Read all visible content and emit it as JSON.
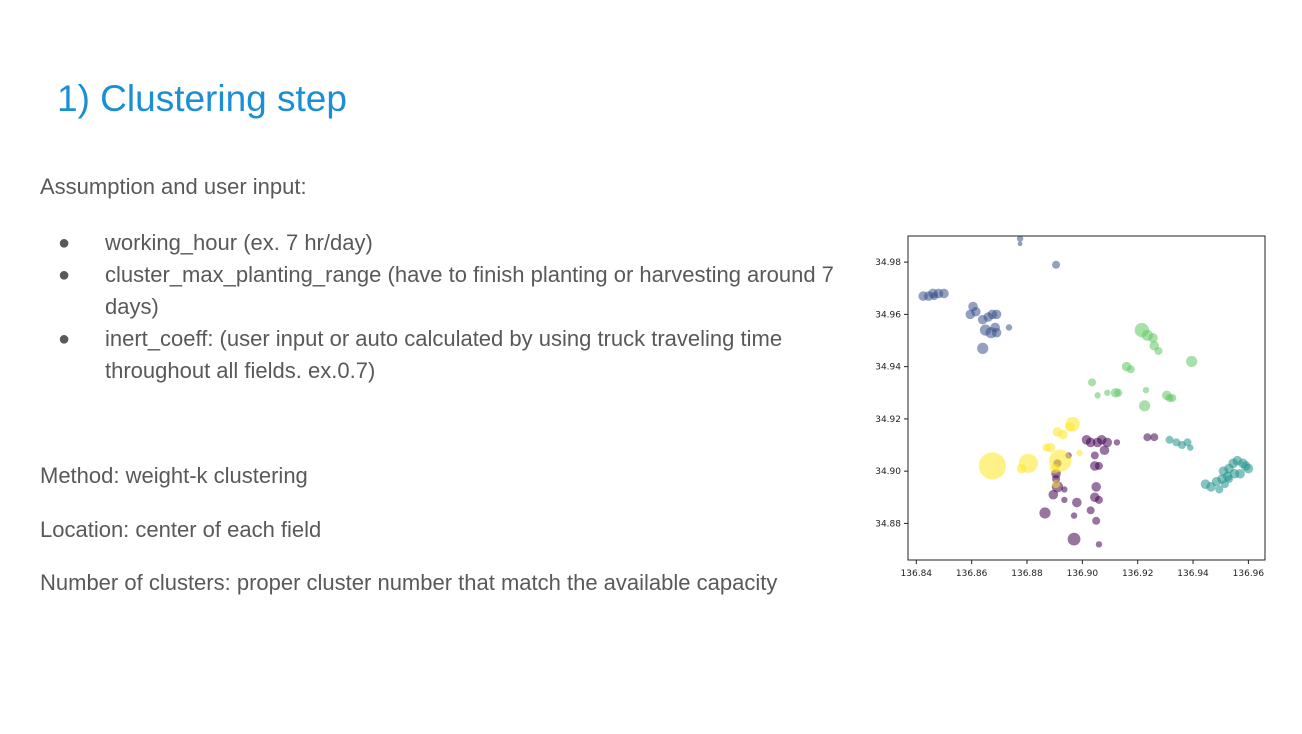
{
  "slide": {
    "title": "1) Clustering step",
    "assumption_heading": "Assumption and user input:",
    "bullets": [
      "working_hour (ex. 7 hr/day)",
      "cluster_max_planting_range (have to finish planting or harvesting around 7 days)",
      "inert_coeff:  (user input or auto calculated by using truck traveling time throughout all fields. ex.0.7)"
    ],
    "bullet_glyph": "●",
    "method": "Method: weight-k clustering",
    "location": "Location: center of each field",
    "num_clusters": "Number of clusters: proper cluster number that match the available capacity"
  },
  "chart_data": {
    "type": "scatter",
    "title": "",
    "xlabel": "",
    "ylabel": "",
    "xlim": [
      136.837,
      136.966
    ],
    "ylim": [
      34.866,
      34.99
    ],
    "xticks": [
      136.84,
      136.86,
      136.88,
      136.9,
      136.92,
      136.94,
      136.96
    ],
    "yticks": [
      34.88,
      34.9,
      34.92,
      34.94,
      34.96,
      34.98
    ],
    "xtick_labels": [
      "136.84",
      "136.86",
      "136.88",
      "136.90",
      "136.92",
      "136.94",
      "136.96"
    ],
    "ytick_labels": [
      "34.88",
      "34.90",
      "34.92",
      "34.94",
      "34.96",
      "34.98"
    ],
    "grid": false,
    "colors": [
      "#3b528b",
      "#440154",
      "#21918c",
      "#5ec962",
      "#fde725"
    ],
    "clusters": [
      {
        "color": "#3b528b",
        "points": [
          [
            136.8425,
            34.967,
            3
          ],
          [
            136.8445,
            34.967,
            3
          ],
          [
            136.846,
            34.968,
            3
          ],
          [
            136.848,
            34.968,
            3
          ],
          [
            136.85,
            34.968,
            3
          ],
          [
            136.8465,
            34.967,
            2.5
          ],
          [
            136.8605,
            34.963,
            3
          ],
          [
            136.8615,
            34.961,
            3
          ],
          [
            136.8595,
            34.96,
            3
          ],
          [
            136.864,
            34.958,
            3
          ],
          [
            136.866,
            34.959,
            3
          ],
          [
            136.8675,
            34.96,
            3
          ],
          [
            136.869,
            34.96,
            3
          ],
          [
            136.865,
            34.954,
            3.5
          ],
          [
            136.867,
            34.953,
            3.5
          ],
          [
            136.8685,
            34.955,
            3
          ],
          [
            136.869,
            34.953,
            3
          ],
          [
            136.8735,
            34.955,
            2
          ],
          [
            136.864,
            34.947,
            3.5
          ],
          [
            136.8775,
            34.989,
            2
          ],
          [
            136.8775,
            34.987,
            1.5
          ],
          [
            136.8905,
            34.979,
            2.5
          ]
        ]
      },
      {
        "color": "#440154",
        "points": [
          [
            136.9015,
            34.912,
            3
          ],
          [
            136.903,
            34.911,
            3
          ],
          [
            136.9055,
            34.911,
            3
          ],
          [
            136.907,
            34.912,
            3
          ],
          [
            136.909,
            34.911,
            3
          ],
          [
            136.908,
            34.908,
            3
          ],
          [
            136.9125,
            34.911,
            2
          ],
          [
            136.9235,
            34.913,
            2.5
          ],
          [
            136.926,
            34.913,
            2.5
          ],
          [
            136.9045,
            34.906,
            2.5
          ],
          [
            136.895,
            34.906,
            2
          ],
          [
            136.891,
            34.903,
            2.5
          ],
          [
            136.9045,
            34.902,
            3
          ],
          [
            136.906,
            34.902,
            2.5
          ],
          [
            136.8905,
            34.899,
            3
          ],
          [
            136.8905,
            34.897,
            2.5
          ],
          [
            136.891,
            34.894,
            3.5
          ],
          [
            136.8895,
            34.891,
            3
          ],
          [
            136.8935,
            34.893,
            2
          ],
          [
            136.905,
            34.894,
            3
          ],
          [
            136.9045,
            34.89,
            3
          ],
          [
            136.906,
            34.889,
            2.5
          ],
          [
            136.8935,
            34.889,
            2
          ],
          [
            136.898,
            34.888,
            3
          ],
          [
            136.903,
            34.885,
            2.5
          ],
          [
            136.8865,
            34.884,
            3.5
          ],
          [
            136.897,
            34.883,
            2
          ],
          [
            136.905,
            34.881,
            2.5
          ],
          [
            136.897,
            34.874,
            4
          ],
          [
            136.906,
            34.872,
            2
          ]
        ]
      },
      {
        "color": "#21918c",
        "points": [
          [
            136.9315,
            34.912,
            2.5
          ],
          [
            136.934,
            34.911,
            2.5
          ],
          [
            136.936,
            34.91,
            2.5
          ],
          [
            136.938,
            34.911,
            2.5
          ],
          [
            136.939,
            34.909,
            2
          ],
          [
            136.9445,
            34.895,
            3
          ],
          [
            136.9465,
            34.894,
            3
          ],
          [
            136.9485,
            34.896,
            3
          ],
          [
            136.9505,
            34.897,
            3
          ],
          [
            136.9525,
            34.898,
            3
          ],
          [
            136.951,
            34.9,
            3
          ],
          [
            136.953,
            34.901,
            3
          ],
          [
            136.9545,
            34.903,
            3
          ],
          [
            136.956,
            34.904,
            3
          ],
          [
            136.958,
            34.903,
            3
          ],
          [
            136.959,
            34.902,
            3
          ],
          [
            136.96,
            34.901,
            3
          ],
          [
            136.957,
            34.899,
            3
          ],
          [
            136.955,
            34.899,
            3
          ],
          [
            136.9495,
            34.893,
            2.5
          ],
          [
            136.9515,
            34.895,
            2.5
          ],
          [
            136.953,
            34.897,
            2.5
          ]
        ]
      },
      {
        "color": "#5ec962",
        "points": [
          [
            136.9215,
            34.954,
            4.5
          ],
          [
            136.9235,
            34.952,
            3.5
          ],
          [
            136.9255,
            34.951,
            3
          ],
          [
            136.926,
            34.948,
            3
          ],
          [
            136.9275,
            34.946,
            2.5
          ],
          [
            136.916,
            34.94,
            3
          ],
          [
            136.9175,
            34.939,
            2.5
          ],
          [
            136.9395,
            34.942,
            3.5
          ],
          [
            136.9035,
            34.934,
            2.5
          ],
          [
            136.9055,
            34.929,
            2
          ],
          [
            136.909,
            34.93,
            2
          ],
          [
            136.912,
            34.93,
            3
          ],
          [
            136.913,
            34.93,
            2.5
          ],
          [
            136.923,
            34.931,
            2
          ],
          [
            136.9305,
            34.929,
            3
          ],
          [
            136.9325,
            34.928,
            2.5
          ],
          [
            136.9225,
            34.925,
            3.5
          ],
          [
            136.9315,
            34.928,
            2.5
          ]
        ]
      },
      {
        "color": "#fde725",
        "points": [
          [
            136.8675,
            34.902,
            8.5
          ],
          [
            136.8805,
            34.903,
            6
          ],
          [
            136.878,
            34.901,
            3
          ],
          [
            136.892,
            34.904,
            7
          ],
          [
            136.89,
            34.901,
            3
          ],
          [
            136.8885,
            34.909,
            3
          ],
          [
            136.8965,
            34.918,
            4.5
          ],
          [
            136.891,
            34.915,
            3
          ],
          [
            136.893,
            34.914,
            3
          ],
          [
            136.8955,
            34.917,
            3
          ],
          [
            136.887,
            34.909,
            2.5
          ],
          [
            136.8905,
            34.895,
            2.5
          ],
          [
            136.899,
            34.907,
            2
          ]
        ]
      }
    ]
  }
}
